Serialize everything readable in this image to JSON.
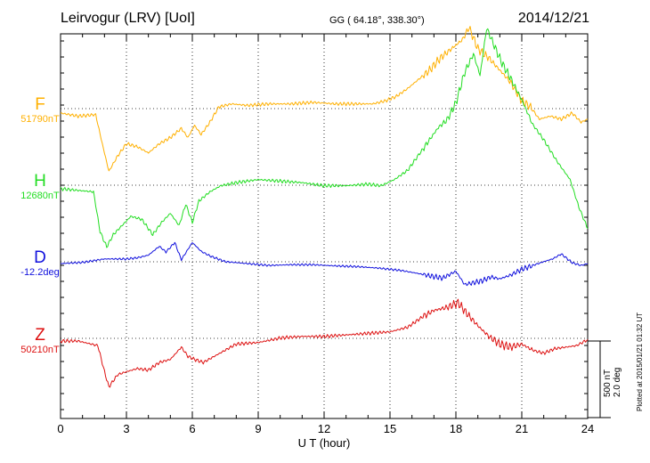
{
  "header": {
    "station": "Leirvogur (LRV)  [UoI]",
    "coords": "GG ( 64.18°, 338.30°)",
    "date": "2014/12/21"
  },
  "scale": {
    "nT": "500 nT",
    "deg": "2.0 deg"
  },
  "plotted": "Plotted at 2015/01/21 01:32 UT",
  "chart_data": {
    "type": "line",
    "title": "Leirvogur (LRV)  [UoI]",
    "xlabel": "U T (hour)",
    "ylabel": "",
    "xlim": [
      0,
      24
    ],
    "xticks": [
      "0",
      "3",
      "6",
      "9",
      "12",
      "15",
      "18",
      "21",
      "24"
    ],
    "grid": true,
    "units_per_grid_division": {
      "nT": 500,
      "deg": 2.0
    },
    "series": [
      {
        "name": "F",
        "baseline": "51790nT",
        "color": "#ffb000",
        "x": [
          0,
          0.8,
          1.6,
          1.9,
          2.2,
          2.6,
          3.0,
          3.5,
          4.0,
          4.5,
          5.0,
          5.5,
          5.8,
          6.1,
          6.4,
          6.8,
          7.2,
          7.8,
          8.5,
          9.5,
          10.5,
          11.5,
          12.5,
          13.5,
          14.2,
          14.8,
          15.3,
          15.8,
          16.3,
          16.8,
          17.3,
          17.8,
          18.3,
          18.6,
          19.0,
          19.5,
          20.0,
          20.5,
          21.0,
          21.4,
          21.8,
          22.3,
          22.8,
          23.3,
          23.7,
          24.0
        ],
        "values": [
          0,
          -20,
          -10,
          -200,
          -380,
          -280,
          -200,
          -220,
          -260,
          -200,
          -160,
          -100,
          -160,
          -80,
          -140,
          -60,
          40,
          60,
          50,
          60,
          60,
          70,
          60,
          60,
          60,
          80,
          110,
          160,
          220,
          280,
          360,
          420,
          480,
          560,
          420,
          360,
          280,
          200,
          80,
          40,
          -40,
          -20,
          -40,
          0,
          -60,
          -40
        ]
      },
      {
        "name": "H",
        "baseline": "12680nT",
        "color": "#22dd22",
        "x": [
          0,
          1.5,
          1.8,
          2.1,
          2.4,
          2.8,
          3.2,
          3.7,
          4.2,
          4.6,
          5.0,
          5.4,
          5.7,
          6.0,
          6.3,
          6.8,
          7.3,
          8.0,
          9.0,
          10.0,
          11.0,
          12.0,
          13.0,
          14.0,
          14.6,
          15.2,
          15.8,
          16.4,
          16.8,
          17.2,
          17.6,
          18.0,
          18.4,
          18.8,
          19.1,
          19.4,
          19.7,
          20.1,
          20.5,
          21.0,
          21.5,
          22.0,
          22.6,
          23.2,
          23.6,
          24.0
        ],
        "values": [
          0,
          -20,
          -280,
          -380,
          -300,
          -240,
          -180,
          -200,
          -300,
          -220,
          -160,
          -240,
          -100,
          -220,
          -80,
          -20,
          20,
          40,
          60,
          50,
          40,
          20,
          20,
          30,
          20,
          60,
          120,
          240,
          320,
          400,
          450,
          560,
          760,
          880,
          740,
          1050,
          950,
          820,
          720,
          580,
          420,
          320,
          180,
          60,
          -120,
          -260
        ]
      },
      {
        "name": "D",
        "baseline": "-12.2deg",
        "color": "#1010dd",
        "x": [
          0,
          1.0,
          2.0,
          3.0,
          3.5,
          4.0,
          4.5,
          4.8,
          5.2,
          5.5,
          6.0,
          6.4,
          6.8,
          7.5,
          8.5,
          9.5,
          10.5,
          11.5,
          12.5,
          13.5,
          14.5,
          15.5,
          16.2,
          16.8,
          17.4,
          18.0,
          18.4,
          18.8,
          19.2,
          19.6,
          20.0,
          20.5,
          21.0,
          21.5,
          22.0,
          22.4,
          22.8,
          23.3,
          23.7,
          24.0
        ],
        "values": [
          0,
          0.03,
          0.12,
          0.12,
          0.15,
          0.22,
          0.45,
          0.3,
          0.55,
          0.1,
          0.55,
          0.32,
          0.2,
          0.05,
          0.0,
          -0.05,
          -0.03,
          -0.03,
          -0.06,
          -0.08,
          -0.12,
          -0.18,
          -0.25,
          -0.32,
          -0.38,
          -0.2,
          -0.55,
          -0.5,
          -0.45,
          -0.35,
          -0.4,
          -0.3,
          -0.15,
          -0.05,
          0.05,
          0.12,
          0.25,
          0.02,
          -0.05,
          0.0
        ]
      },
      {
        "name": "Z",
        "baseline": "50210nT",
        "color": "#dd1010",
        "x": [
          0,
          0.8,
          1.7,
          2.0,
          2.2,
          2.6,
          3.0,
          3.5,
          4.0,
          4.5,
          5.0,
          5.5,
          5.8,
          6.1,
          6.5,
          7.0,
          7.5,
          8.0,
          9.0,
          10.0,
          11.0,
          12.0,
          13.0,
          14.0,
          15.0,
          15.8,
          16.4,
          17.0,
          17.6,
          18.1,
          18.5,
          19.0,
          19.5,
          20.0,
          20.5,
          21.0,
          21.5,
          22.0,
          22.5,
          23.0,
          23.5,
          24.0
        ],
        "values": [
          0,
          0,
          -30,
          -200,
          -300,
          -220,
          -200,
          -180,
          -190,
          -140,
          -120,
          -40,
          -100,
          -120,
          -140,
          -100,
          -60,
          -20,
          -10,
          20,
          30,
          30,
          40,
          50,
          60,
          90,
          150,
          200,
          220,
          250,
          180,
          100,
          30,
          -20,
          -40,
          -20,
          -60,
          -80,
          -50,
          -40,
          -30,
          10
        ]
      }
    ]
  }
}
